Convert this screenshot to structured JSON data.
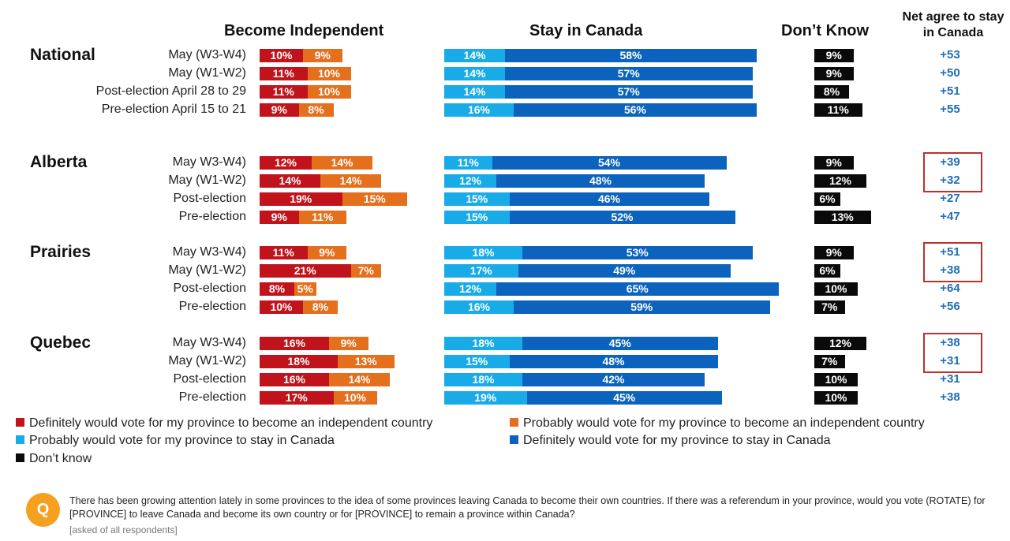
{
  "colors": {
    "def_indep": "#c0131b",
    "prob_indep": "#e46f1d",
    "prob_stay": "#19abe8",
    "def_stay": "#0b63bd",
    "dont_know": "#0a0a0a",
    "net": "#1f6fb5",
    "highlight": "#c0302a",
    "question_icon": "#f5a01f"
  },
  "headers": {
    "independent": "Become Independent",
    "stay": "Stay in Canada",
    "dontknow": "Don’t Know",
    "net": "Net agree to stay in Canada"
  },
  "legend": {
    "def_indep": "Definitely would vote for my province to become an independent country",
    "prob_indep": "Probably would vote for my province to become an independent country",
    "prob_stay": "Probably would vote for my province to stay in Canada",
    "def_stay": "Definitely would vote for my province to stay in Canada",
    "dont_know": "Don’t know"
  },
  "question": {
    "icon_letter": "Q",
    "text": "There has been growing attention lately in some provinces to the idea of some provinces leaving Canada to become their own countries. If there was a referendum in your province, would you vote (ROTATE) for [PROVINCE] to leave Canada and become its own country or for [PROVINCE] to remain a province within Canada?",
    "note": "[asked of all respondents]"
  },
  "chart_data": {
    "type": "bar",
    "orientation": "horizontal",
    "stacked": true,
    "unit": "%",
    "groups": [
      {
        "name": "National",
        "rows": [
          {
            "label": "May (W3-W4)",
            "def_indep": 10,
            "prob_indep": 9,
            "prob_stay": 14,
            "def_stay": 58,
            "dont_know": 9,
            "net": "+53",
            "highlight": false
          },
          {
            "label": "May (W1-W2)",
            "def_indep": 11,
            "prob_indep": 10,
            "prob_stay": 14,
            "def_stay": 57,
            "dont_know": 9,
            "net": "+50",
            "highlight": false
          },
          {
            "label": "Post-election April 28 to 29",
            "def_indep": 11,
            "prob_indep": 10,
            "prob_stay": 14,
            "def_stay": 57,
            "dont_know": 8,
            "net": "+51",
            "highlight": false
          },
          {
            "label": "Pre-election April 15 to 21",
            "def_indep": 9,
            "prob_indep": 8,
            "prob_stay": 16,
            "def_stay": 56,
            "dont_know": 11,
            "net": "+55",
            "highlight": false
          }
        ]
      },
      {
        "name": "Alberta",
        "rows": [
          {
            "label": "May W3-W4)",
            "def_indep": 12,
            "prob_indep": 14,
            "prob_stay": 11,
            "def_stay": 54,
            "dont_know": 9,
            "net": "+39",
            "highlight": true
          },
          {
            "label": "May (W1-W2)",
            "def_indep": 14,
            "prob_indep": 14,
            "prob_stay": 12,
            "def_stay": 48,
            "dont_know": 12,
            "net": "+32",
            "highlight": true
          },
          {
            "label": "Post-election",
            "def_indep": 19,
            "prob_indep": 15,
            "prob_stay": 15,
            "def_stay": 46,
            "dont_know": 6,
            "net": "+27",
            "highlight": false
          },
          {
            "label": "Pre-election",
            "def_indep": 9,
            "prob_indep": 11,
            "prob_stay": 15,
            "def_stay": 52,
            "dont_know": 13,
            "net": "+47",
            "highlight": false
          }
        ]
      },
      {
        "name": "Prairies",
        "rows": [
          {
            "label": "May W3-W4)",
            "def_indep": 11,
            "prob_indep": 9,
            "prob_stay": 18,
            "def_stay": 53,
            "dont_know": 9,
            "net": "+51",
            "highlight": true
          },
          {
            "label": "May (W1-W2)",
            "def_indep": 21,
            "prob_indep": 7,
            "prob_stay": 17,
            "def_stay": 49,
            "dont_know": 6,
            "net": "+38",
            "highlight": true
          },
          {
            "label": "Post-election",
            "def_indep": 8,
            "prob_indep": 5,
            "prob_stay": 12,
            "def_stay": 65,
            "dont_know": 10,
            "net": "+64",
            "highlight": false
          },
          {
            "label": "Pre-election",
            "def_indep": 10,
            "prob_indep": 8,
            "prob_stay": 16,
            "def_stay": 59,
            "dont_know": 7,
            "net": "+56",
            "highlight": false
          }
        ]
      },
      {
        "name": "Quebec",
        "rows": [
          {
            "label": "May W3-W4)",
            "def_indep": 16,
            "prob_indep": 9,
            "prob_stay": 18,
            "def_stay": 45,
            "dont_know": 12,
            "net": "+38",
            "highlight": true
          },
          {
            "label": "May (W1-W2)",
            "def_indep": 18,
            "prob_indep": 13,
            "prob_stay": 15,
            "def_stay": 48,
            "dont_know": 7,
            "net": "+31",
            "highlight": true
          },
          {
            "label": "Post-election",
            "def_indep": 16,
            "prob_indep": 14,
            "prob_stay": 18,
            "def_stay": 42,
            "dont_know": 10,
            "net": "+31",
            "highlight": false
          },
          {
            "label": "Pre-election",
            "def_indep": 17,
            "prob_indep": 10,
            "prob_stay": 19,
            "def_stay": 45,
            "dont_know": 10,
            "net": "+38",
            "highlight": false
          }
        ]
      }
    ]
  }
}
